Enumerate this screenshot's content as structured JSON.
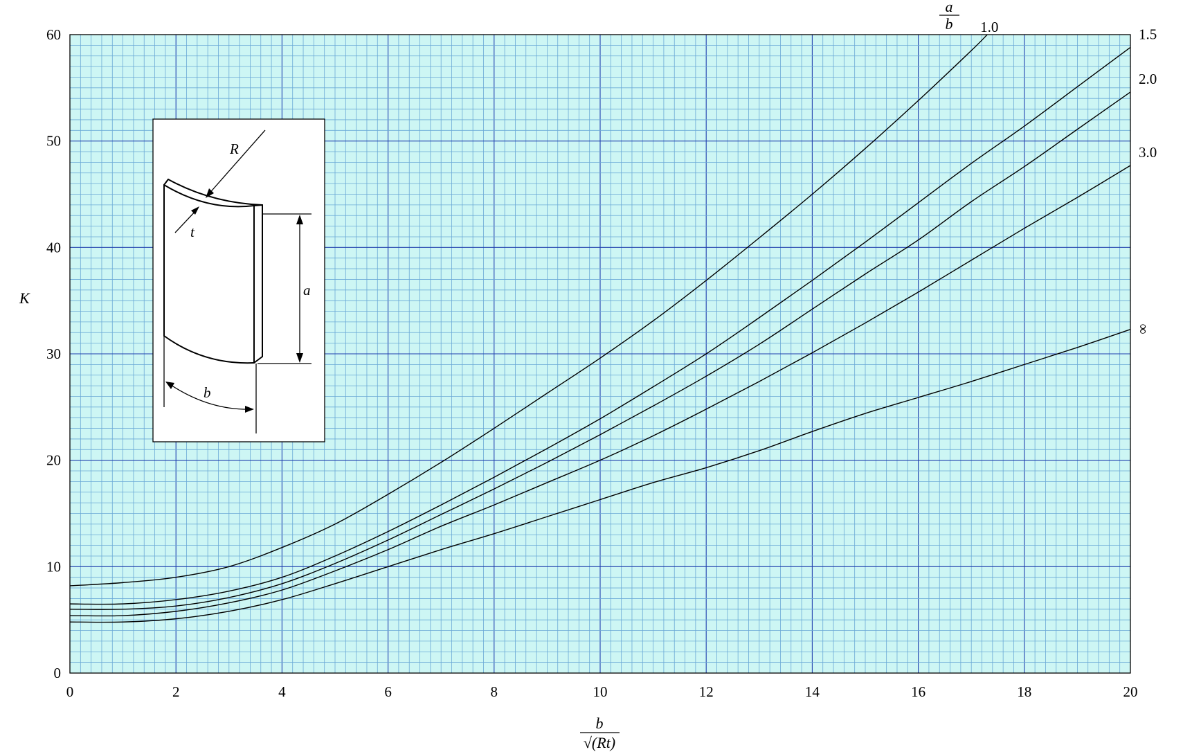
{
  "chart_data": {
    "type": "line",
    "title": "",
    "xlabel_num": "b",
    "xlabel_den": "√(Rt)",
    "ylabel": "K",
    "xlim": [
      0,
      20
    ],
    "ylim": [
      0,
      60
    ],
    "x_ticks": [
      "0",
      "2",
      "4",
      "6",
      "8",
      "10",
      "12",
      "14",
      "16",
      "18",
      "20"
    ],
    "y_ticks": [
      "0",
      "10",
      "20",
      "30",
      "40",
      "50",
      "60"
    ],
    "grid": true,
    "background": "#cdf6f4",
    "minor_grid_color": "#6aa9d6",
    "major_grid_color": "#1f3fae",
    "legend_title_num": "a",
    "legend_title_den": "b",
    "series": [
      {
        "name": "1.0",
        "x": [
          0,
          1,
          2,
          3,
          4,
          5,
          6,
          7,
          8,
          9,
          10,
          11,
          12,
          13,
          14,
          15,
          16,
          17,
          17.3
        ],
        "y": [
          8.2,
          8.5,
          9.0,
          10.0,
          11.8,
          14.0,
          16.8,
          19.8,
          23.0,
          26.3,
          29.6,
          33.1,
          36.9,
          40.9,
          45.0,
          49.3,
          53.8,
          58.5,
          60
        ]
      },
      {
        "name": "1.5",
        "x": [
          0,
          1,
          2,
          3,
          4,
          5,
          6,
          7,
          8,
          9,
          10,
          11,
          12,
          13,
          14,
          15,
          16,
          17,
          18,
          19,
          20
        ],
        "y": [
          6.5,
          6.5,
          6.9,
          7.7,
          9.0,
          11.0,
          13.3,
          15.8,
          18.4,
          21.1,
          23.9,
          26.9,
          30.0,
          33.4,
          36.9,
          40.5,
          44.2,
          47.9,
          51.4,
          55.1,
          58.8
        ]
      },
      {
        "name": "2.0",
        "x": [
          0,
          1,
          2,
          3,
          4,
          5,
          6,
          7,
          8,
          9,
          10,
          11,
          12,
          13,
          14,
          15,
          16,
          17,
          18,
          19,
          20
        ],
        "y": [
          6.0,
          6.0,
          6.3,
          7.1,
          8.4,
          10.3,
          12.5,
          14.9,
          17.3,
          19.8,
          22.4,
          25.1,
          27.9,
          30.9,
          34.2,
          37.5,
          40.7,
          44.3,
          47.6,
          51.1,
          54.6
        ]
      },
      {
        "name": "3.0",
        "x": [
          0,
          1,
          2,
          3,
          4,
          5,
          6,
          7,
          8,
          9,
          10,
          11,
          12,
          13,
          14,
          15,
          16,
          17,
          18,
          19,
          20
        ],
        "y": [
          5.4,
          5.4,
          5.8,
          6.6,
          7.8,
          9.6,
          11.6,
          13.8,
          15.8,
          17.9,
          20.0,
          22.3,
          24.8,
          27.4,
          30.1,
          32.9,
          35.8,
          38.8,
          41.8,
          44.7,
          47.7
        ]
      },
      {
        "name": "∞",
        "x": [
          0,
          1,
          2,
          3,
          4,
          5,
          6,
          7,
          8,
          9,
          10,
          11,
          12,
          13,
          14,
          15,
          16,
          17,
          18,
          19,
          20
        ],
        "y": [
          4.8,
          4.8,
          5.1,
          5.8,
          6.9,
          8.4,
          10.0,
          11.6,
          13.1,
          14.7,
          16.3,
          17.9,
          19.3,
          20.9,
          22.7,
          24.4,
          25.9,
          27.4,
          29.0,
          30.6,
          32.3
        ]
      }
    ]
  },
  "inset": {
    "labels": {
      "R": "R",
      "t": "t",
      "a": "a",
      "b": "b"
    }
  }
}
